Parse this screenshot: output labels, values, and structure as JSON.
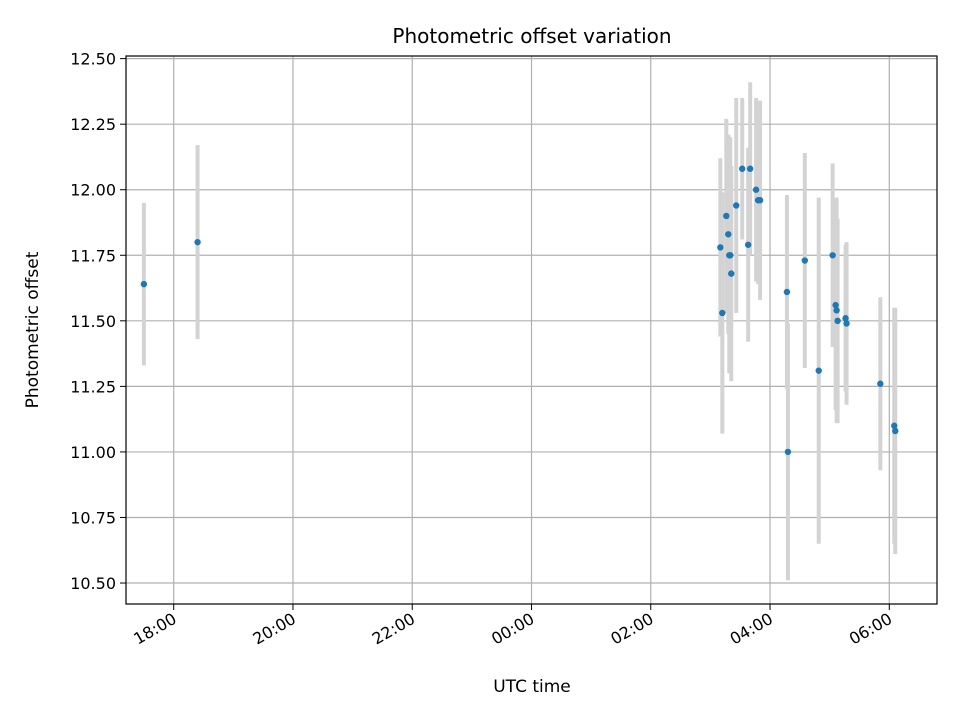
{
  "chart_data": {
    "type": "scatter",
    "title": "Photometric offset variation",
    "xlabel": "UTC time",
    "ylabel": "Photometric offset",
    "x_unit": "UTC time (HH:MM), night spanning midnight",
    "xlim": [
      "17:12",
      "06:48"
    ],
    "ylim": [
      10.42,
      12.51
    ],
    "xticks": [
      "18:00",
      "20:00",
      "22:00",
      "00:00",
      "02:00",
      "04:00",
      "06:00"
    ],
    "yticks": [
      "10.50",
      "10.75",
      "11.00",
      "11.25",
      "11.50",
      "11.75",
      "12.00",
      "12.25",
      "12.50"
    ],
    "grid": true,
    "error_bar_color": "#d3d3d3",
    "marker_color": "#1f77b4",
    "points": [
      {
        "t": "17:30",
        "y": 11.64,
        "err": 0.31
      },
      {
        "t": "18:24",
        "y": 11.8,
        "err": 0.37
      },
      {
        "t": "03:10",
        "y": 11.78,
        "err": 0.34
      },
      {
        "t": "03:12",
        "y": 11.53,
        "err": 0.46
      },
      {
        "t": "03:16",
        "y": 11.9,
        "err": 0.37
      },
      {
        "t": "03:18",
        "y": 11.83,
        "err": 0.38
      },
      {
        "t": "03:19",
        "y": 11.75,
        "err": 0.45
      },
      {
        "t": "03:20",
        "y": 11.75,
        "err": 0.45
      },
      {
        "t": "03:21",
        "y": 11.68,
        "err": 0.41
      },
      {
        "t": "03:26",
        "y": 11.94,
        "err": 0.41
      },
      {
        "t": "03:32",
        "y": 12.08,
        "err": 0.27
      },
      {
        "t": "03:38",
        "y": 11.79,
        "err": 0.37
      },
      {
        "t": "03:40",
        "y": 12.08,
        "err": 0.33
      },
      {
        "t": "03:46",
        "y": 12.0,
        "err": 0.35
      },
      {
        "t": "03:48",
        "y": 11.96,
        "err": 0.32
      },
      {
        "t": "03:50",
        "y": 11.96,
        "err": 0.38
      },
      {
        "t": "04:17",
        "y": 11.61,
        "err": 0.37
      },
      {
        "t": "04:18",
        "y": 11.0,
        "err": 0.49
      },
      {
        "t": "04:35",
        "y": 11.73,
        "err": 0.41
      },
      {
        "t": "04:49",
        "y": 11.31,
        "err": 0.66
      },
      {
        "t": "05:03",
        "y": 11.75,
        "err": 0.35
      },
      {
        "t": "05:06",
        "y": 11.56,
        "err": 0.4
      },
      {
        "t": "05:07",
        "y": 11.54,
        "err": 0.43
      },
      {
        "t": "05:08",
        "y": 11.5,
        "err": 0.39
      },
      {
        "t": "05:16",
        "y": 11.51,
        "err": 0.28
      },
      {
        "t": "05:17",
        "y": 11.49,
        "err": 0.31
      },
      {
        "t": "05:51",
        "y": 11.26,
        "err": 0.33
      },
      {
        "t": "06:05",
        "y": 11.1,
        "err": 0.45
      },
      {
        "t": "06:06",
        "y": 11.08,
        "err": 0.47
      }
    ]
  }
}
